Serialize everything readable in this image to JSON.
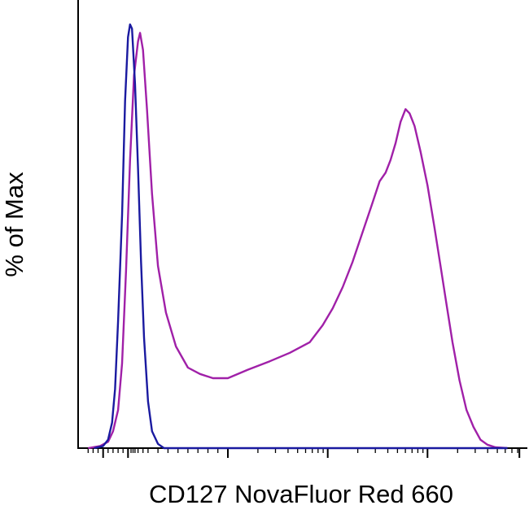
{
  "chart_data": {
    "type": "line",
    "title": "",
    "xlabel": "CD127 NovaFluor Red 660",
    "ylabel": "% of Max",
    "x_scale": "biexponential",
    "ylim": [
      0,
      100
    ],
    "grid": false,
    "legend": "none",
    "series": [
      {
        "color": "#1a1aa0",
        "points": [
          [
            -0.34,
            0
          ],
          [
            -0.25,
            0.5
          ],
          [
            -0.2,
            2
          ],
          [
            -0.16,
            6
          ],
          [
            -0.13,
            14
          ],
          [
            -0.1,
            30
          ],
          [
            -0.06,
            55
          ],
          [
            -0.03,
            82
          ],
          [
            0.0,
            97
          ],
          [
            0.02,
            100
          ],
          [
            0.04,
            99
          ],
          [
            0.07,
            86
          ],
          [
            0.1,
            66
          ],
          [
            0.13,
            44
          ],
          [
            0.16,
            26
          ],
          [
            0.2,
            11
          ],
          [
            0.24,
            4
          ],
          [
            0.3,
            1
          ],
          [
            0.36,
            0
          ],
          [
            3.8,
            0
          ]
        ]
      },
      {
        "color": "#a020a8",
        "points": [
          [
            -0.4,
            0
          ],
          [
            -0.28,
            0.5
          ],
          [
            -0.2,
            1.5
          ],
          [
            -0.15,
            4
          ],
          [
            -0.1,
            9
          ],
          [
            -0.06,
            20
          ],
          [
            -0.02,
            42
          ],
          [
            0.02,
            68
          ],
          [
            0.06,
            88
          ],
          [
            0.1,
            96
          ],
          [
            0.12,
            98
          ],
          [
            0.15,
            94
          ],
          [
            0.19,
            80
          ],
          [
            0.24,
            60
          ],
          [
            0.3,
            43
          ],
          [
            0.38,
            32
          ],
          [
            0.48,
            24
          ],
          [
            0.6,
            19
          ],
          [
            0.72,
            17.5
          ],
          [
            0.85,
            16.5
          ],
          [
            1.0,
            16.5
          ],
          [
            1.2,
            18.5
          ],
          [
            1.42,
            20.5
          ],
          [
            1.62,
            22.5
          ],
          [
            1.82,
            25
          ],
          [
            1.95,
            29
          ],
          [
            2.05,
            33
          ],
          [
            2.15,
            38
          ],
          [
            2.25,
            44
          ],
          [
            2.35,
            51
          ],
          [
            2.45,
            58
          ],
          [
            2.52,
            63
          ],
          [
            2.58,
            65
          ],
          [
            2.63,
            68
          ],
          [
            2.68,
            72
          ],
          [
            2.73,
            77
          ],
          [
            2.78,
            80
          ],
          [
            2.82,
            79
          ],
          [
            2.87,
            76
          ],
          [
            2.93,
            70
          ],
          [
            3.0,
            62
          ],
          [
            3.07,
            52
          ],
          [
            3.13,
            43
          ],
          [
            3.19,
            34
          ],
          [
            3.25,
            25
          ],
          [
            3.32,
            16
          ],
          [
            3.39,
            9
          ],
          [
            3.46,
            5
          ],
          [
            3.53,
            2
          ],
          [
            3.6,
            0.8
          ],
          [
            3.68,
            0.2
          ],
          [
            3.8,
            0
          ]
        ]
      }
    ]
  }
}
